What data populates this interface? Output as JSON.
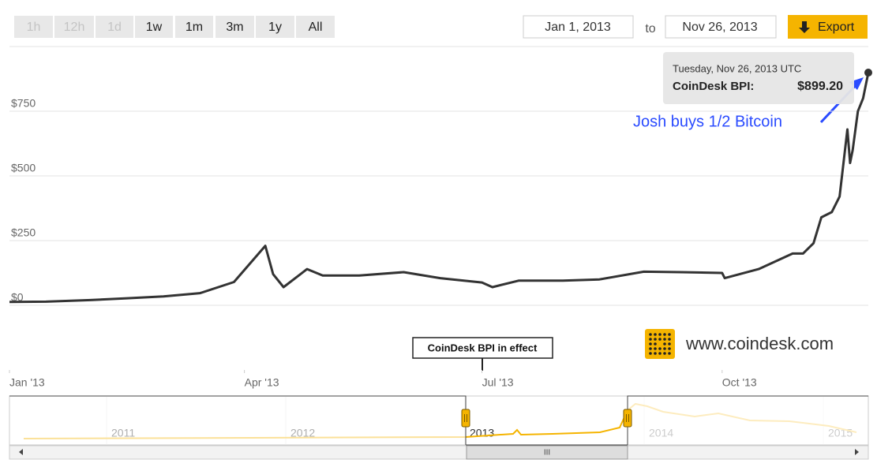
{
  "toolbar": {
    "ranges": [
      "1h",
      "12h",
      "1d",
      "1w",
      "1m",
      "3m",
      "1y",
      "All"
    ],
    "disabled": [
      "1h",
      "12h",
      "1d"
    ],
    "from": "Jan 1, 2013",
    "to_label": "to",
    "to": "Nov 26, 2013",
    "export": "Export"
  },
  "chart_data": {
    "type": "line",
    "x": [
      "2013-01-01",
      "2013-01-15",
      "2013-02-01",
      "2013-02-15",
      "2013-03-01",
      "2013-03-15",
      "2013-03-28",
      "2013-04-09",
      "2013-04-12",
      "2013-04-16",
      "2013-04-25",
      "2013-05-01",
      "2013-05-15",
      "2013-06-01",
      "2013-06-15",
      "2013-07-01",
      "2013-07-05",
      "2013-07-15",
      "2013-08-01",
      "2013-08-15",
      "2013-09-01",
      "2013-09-15",
      "2013-10-01",
      "2013-10-02",
      "2013-10-15",
      "2013-10-28",
      "2013-11-01",
      "2013-11-05",
      "2013-11-08",
      "2013-11-12",
      "2013-11-15",
      "2013-11-18",
      "2013-11-19",
      "2013-11-20",
      "2013-11-22",
      "2013-11-24",
      "2013-11-26"
    ],
    "series": [
      {
        "name": "CoinDesk BPI",
        "color": "#333333",
        "values": [
          13,
          14,
          20,
          27,
          34,
          47,
          90,
          230,
          120,
          70,
          140,
          115,
          115,
          128,
          105,
          88,
          70,
          95,
          95,
          100,
          130,
          128,
          125,
          105,
          140,
          200,
          200,
          240,
          340,
          360,
          420,
          680,
          550,
          600,
          750,
          800,
          899.2
        ]
      }
    ],
    "xlim": [
      "2013-01-01",
      "2013-11-26"
    ],
    "xticks": [
      {
        "value": "2013-01-01",
        "label": "Jan '13"
      },
      {
        "value": "2013-04-01",
        "label": "Apr '13"
      },
      {
        "value": "2013-07-01",
        "label": "Jul '13"
      },
      {
        "value": "2013-10-01",
        "label": "Oct '13"
      }
    ],
    "ylim": [
      -250,
      1000
    ],
    "yticks": [
      {
        "value": 0,
        "label": "$0"
      },
      {
        "value": 250,
        "label": "$250"
      },
      {
        "value": 500,
        "label": "$500"
      },
      {
        "value": 750,
        "label": "$750"
      }
    ],
    "grid": true,
    "tooltip": {
      "date": "Tuesday, Nov 26, 2013 UTC",
      "series_label": "CoinDesk BPI:",
      "value_label": "$899.20"
    },
    "annotations": {
      "event": "CoinDesk BPI in effect",
      "note": "Josh buys 1/2 Bitcoin",
      "source": "www.coindesk.com"
    }
  },
  "navigator": {
    "years": [
      "2011",
      "2012",
      "2013",
      "2014",
      "2015"
    ],
    "scroll_grip": "III"
  }
}
